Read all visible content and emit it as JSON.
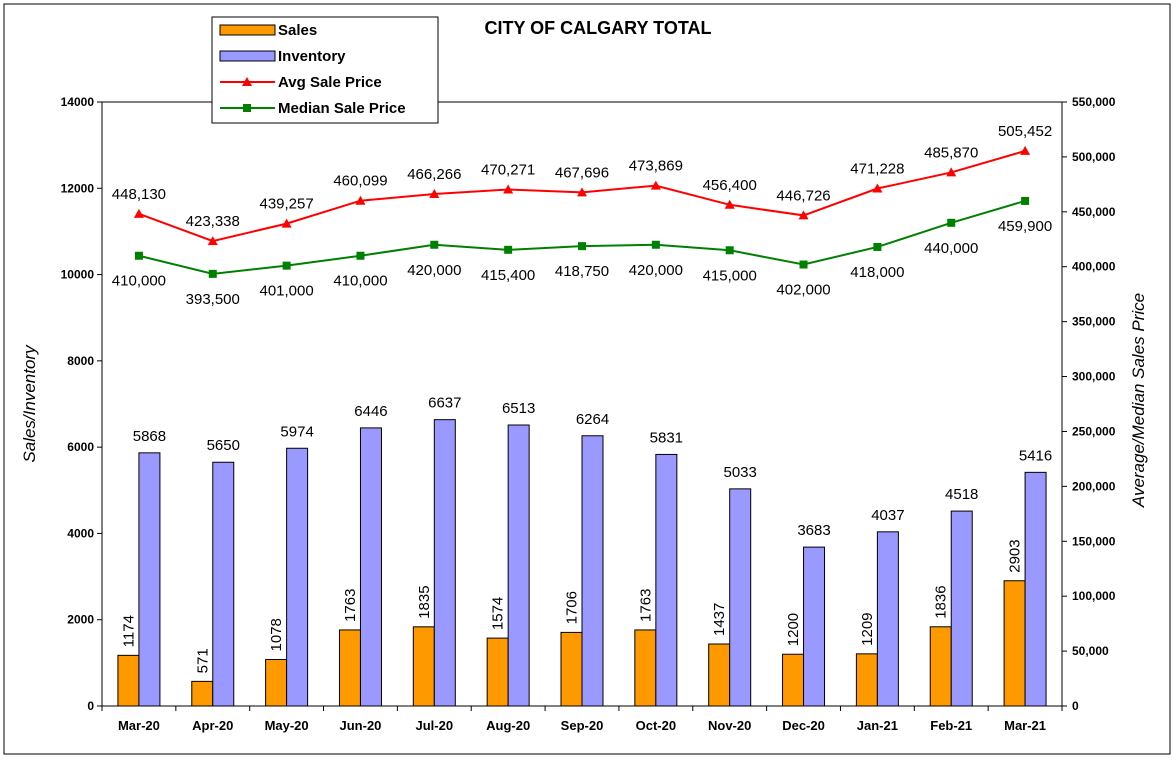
{
  "chart_data": {
    "type": "bar",
    "title": "CITY OF CALGARY TOTAL",
    "categories": [
      "Mar-20",
      "Apr-20",
      "May-20",
      "Jun-20",
      "Jul-20",
      "Aug-20",
      "Sep-20",
      "Oct-20",
      "Nov-20",
      "Dec-20",
      "Jan-21",
      "Feb-21",
      "Mar-21"
    ],
    "ylabel": "Sales/Inventory",
    "y2label": "Average/Median Sales Price",
    "ylim": [
      0,
      14000
    ],
    "y2lim": [
      0,
      550000
    ],
    "yticks": [
      "0",
      "2000",
      "4000",
      "6000",
      "8000",
      "10000",
      "12000",
      "14000"
    ],
    "y2ticks": [
      "0",
      "50,000",
      "100,000",
      "150,000",
      "200,000",
      "250,000",
      "300,000",
      "350,000",
      "400,000",
      "450,000",
      "500,000",
      "550,000"
    ],
    "legend_position": "top-left",
    "series": [
      {
        "name": "Sales",
        "kind": "bar",
        "axis": "left",
        "color": "#FF9900",
        "values": [
          1174,
          571,
          1078,
          1763,
          1835,
          1574,
          1706,
          1763,
          1437,
          1200,
          1209,
          1836,
          2903
        ],
        "labels": [
          "1174",
          "571",
          "1078",
          "1763",
          "1835",
          "1574",
          "1706",
          "1763",
          "1437",
          "1200",
          "1209",
          "1836",
          "2903"
        ]
      },
      {
        "name": "Inventory",
        "kind": "bar",
        "axis": "left",
        "color": "#9999FF",
        "values": [
          5868,
          5650,
          5974,
          6446,
          6637,
          6513,
          6264,
          5831,
          5033,
          3683,
          4037,
          4518,
          5416
        ],
        "labels": [
          "5868",
          "5650",
          "5974",
          "6446",
          "6637",
          "6513",
          "6264",
          "5831",
          "5033",
          "3683",
          "4037",
          "4518",
          "5416"
        ]
      },
      {
        "name": "Avg Sale Price",
        "kind": "line",
        "axis": "right",
        "color": "#FF0000",
        "marker": "triangle",
        "values": [
          448130,
          423338,
          439257,
          460099,
          466266,
          470271,
          467696,
          473869,
          456400,
          446726,
          471228,
          485870,
          505452
        ],
        "labels": [
          "448,130",
          "423,338",
          "439,257",
          "460,099",
          "466,266",
          "470,271",
          "467,696",
          "473,869",
          "456,400",
          "446,726",
          "471,228",
          "485,870",
          "505,452"
        ]
      },
      {
        "name": "Median Sale Price",
        "kind": "line",
        "axis": "right",
        "color": "#008000",
        "marker": "square",
        "values": [
          410000,
          393500,
          401000,
          410000,
          420000,
          415400,
          418750,
          420000,
          415000,
          402000,
          418000,
          440000,
          459900
        ],
        "labels": [
          "410,000",
          "393,500",
          "401,000",
          "410,000",
          "420,000",
          "415,400",
          "418,750",
          "420,000",
          "415,000",
          "402,000",
          "418,000",
          "440,000",
          "459,900"
        ]
      }
    ]
  }
}
